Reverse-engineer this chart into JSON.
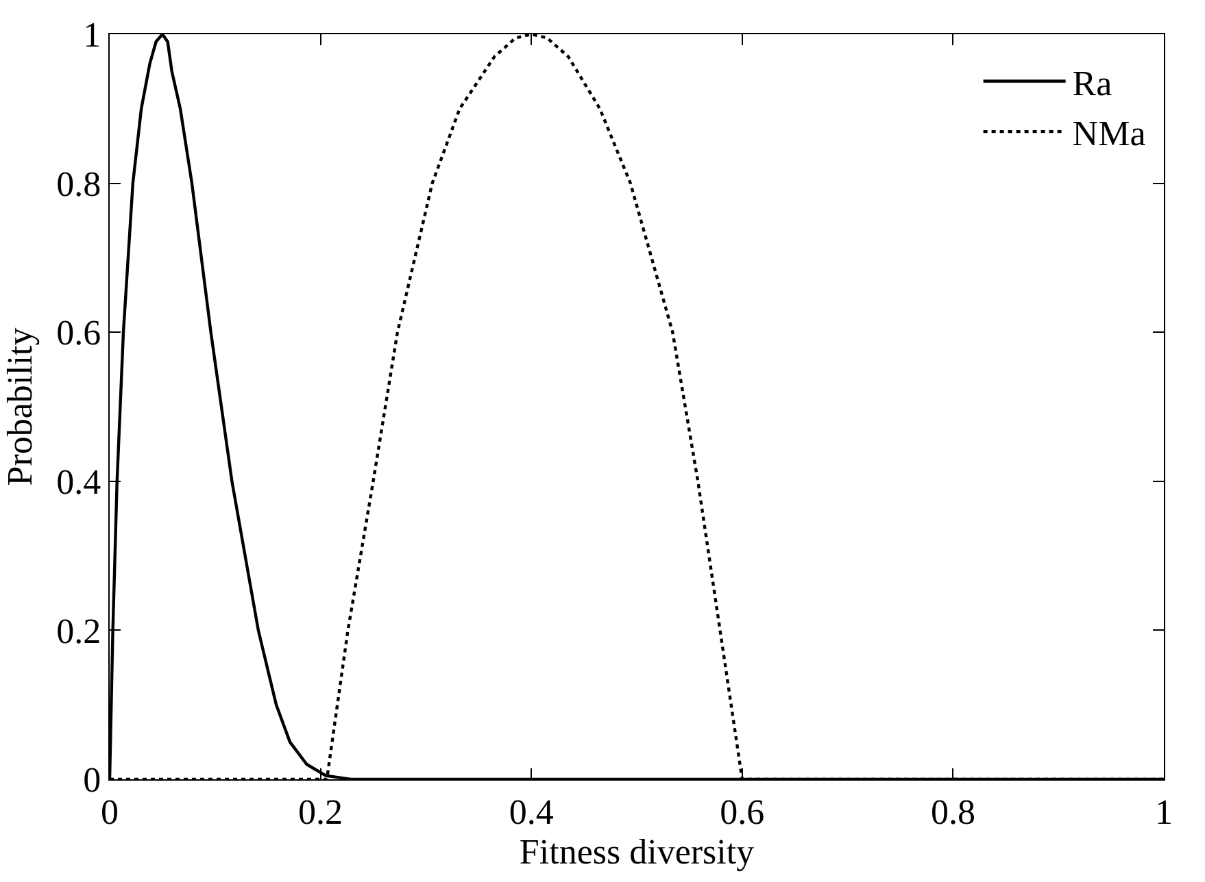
{
  "chart_data": {
    "type": "line",
    "xlabel": "Fitness diversity",
    "ylabel": "Probability",
    "xlim": [
      0,
      1
    ],
    "xticks": [
      0,
      0.2,
      0.4,
      0.6,
      0.8,
      1
    ],
    "ylim": [
      0,
      1
    ],
    "yticks": [
      0,
      0.2,
      0.4,
      0.6,
      0.8,
      1
    ],
    "legend": "top right",
    "series": [
      {
        "name": "Ra",
        "color": "#000000",
        "line_style": "solid",
        "x": [
          0,
          0.003,
          0.007,
          0.013,
          0.022,
          0.03,
          0.038,
          0.044,
          0.05,
          0.055,
          0.059,
          0.067,
          0.078,
          0.096,
          0.116,
          0.141,
          0.158,
          0.171,
          0.187,
          0.205,
          0.229,
          1
        ],
        "values": [
          0,
          0.2,
          0.4,
          0.6,
          0.8,
          0.9,
          0.96,
          0.99,
          1,
          0.99,
          0.95,
          0.9,
          0.8,
          0.6,
          0.4,
          0.2,
          0.1,
          0.05,
          0.02,
          0.005,
          0,
          0
        ]
      },
      {
        "name": "NMa",
        "color": "#000000",
        "line_style": "dotted",
        "x": [
          0,
          0.206,
          0.226,
          0.25,
          0.273,
          0.306,
          0.332,
          0.365,
          0.385,
          0.4,
          0.415,
          0.435,
          0.465,
          0.494,
          0.534,
          0.558,
          0.579,
          0.6,
          1
        ],
        "values": [
          0,
          0,
          0.2,
          0.4,
          0.6,
          0.8,
          0.9,
          0.97,
          0.995,
          1,
          0.995,
          0.97,
          0.9,
          0.8,
          0.6,
          0.4,
          0.2,
          0,
          0
        ]
      }
    ]
  }
}
